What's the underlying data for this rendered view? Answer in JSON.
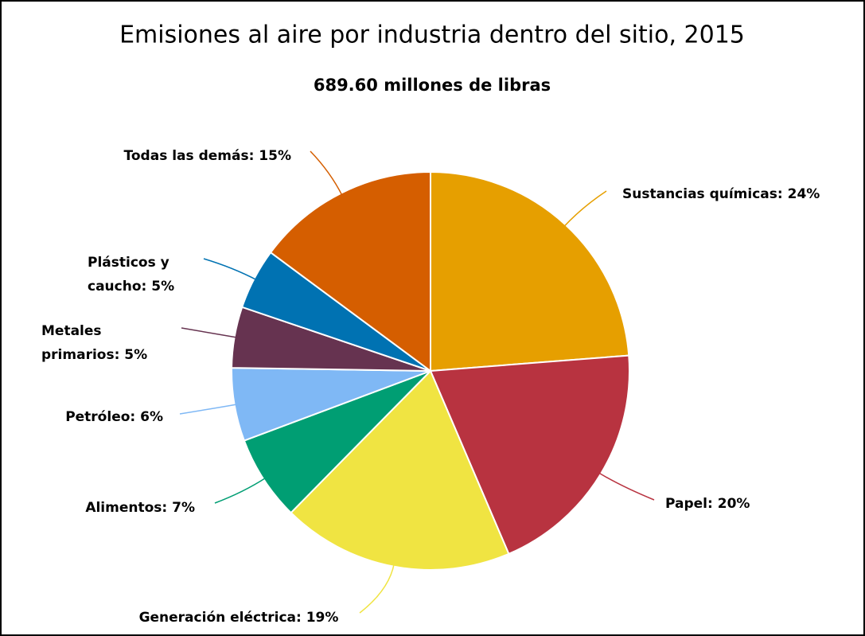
{
  "chart_data": {
    "type": "pie",
    "title": "Emisiones al aire por industria dentro del sitio, 2015",
    "subtitle": "689.60 millones de libras",
    "categories": [
      "Sustancias químicas",
      "Papel",
      "Generación eléctrica",
      "Alimentos",
      "Petróleo",
      "Metales primarios",
      "Plásticos y caucho",
      "Todas las demás"
    ],
    "values": [
      24,
      20,
      19,
      7,
      6,
      5,
      5,
      15
    ],
    "value_labels": [
      "24%",
      "20%",
      "19%",
      "7%",
      "6%",
      "5%",
      "5%",
      "15%"
    ],
    "colors": [
      "#e69f00",
      "#b83340",
      "#f0e442",
      "#009e73",
      "#7fb8f5",
      "#663350",
      "#0072b2",
      "#d55e00"
    ]
  }
}
